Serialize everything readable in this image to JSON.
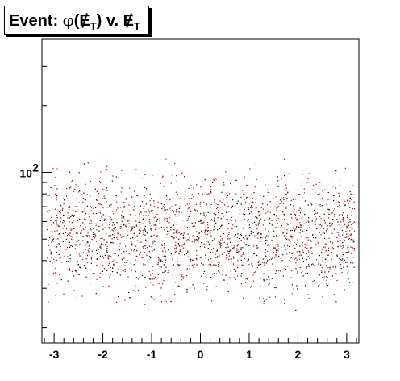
{
  "chart_data": {
    "type": "scatter",
    "title": "Event: φ(E̸T) v. E̸T",
    "title_parts": {
      "prefix": "Event: ",
      "phi": "φ",
      "lparen": "(",
      "met1": "E",
      "sub1": "T",
      "rparen": ")",
      "mid": " v. ",
      "met2": "E",
      "sub2": "T"
    },
    "xlabel": "",
    "ylabel": "",
    "xlim": [
      -3.25,
      3.25
    ],
    "ylim": [
      17,
      400
    ],
    "yscale": "log",
    "x_ticks": [
      -3,
      -2,
      -1,
      0,
      1,
      2,
      3
    ],
    "x_tick_labels": [
      "-3",
      "-2",
      "-1",
      "0",
      "1",
      "2",
      "3"
    ],
    "y_ticks": [
      100
    ],
    "y_tick_labels": [
      {
        "base": "10",
        "exp": "2"
      }
    ],
    "grid": false,
    "legend": "none",
    "marker_colors": [
      "#000000",
      "#cc0000"
    ],
    "x_distribution": "uniform",
    "y_density_peak": 75,
    "y_density_range": [
      22,
      125
    ],
    "point_count_estimate": 2200
  },
  "colors": {
    "frame": "#000000",
    "background": "#ffffff"
  }
}
